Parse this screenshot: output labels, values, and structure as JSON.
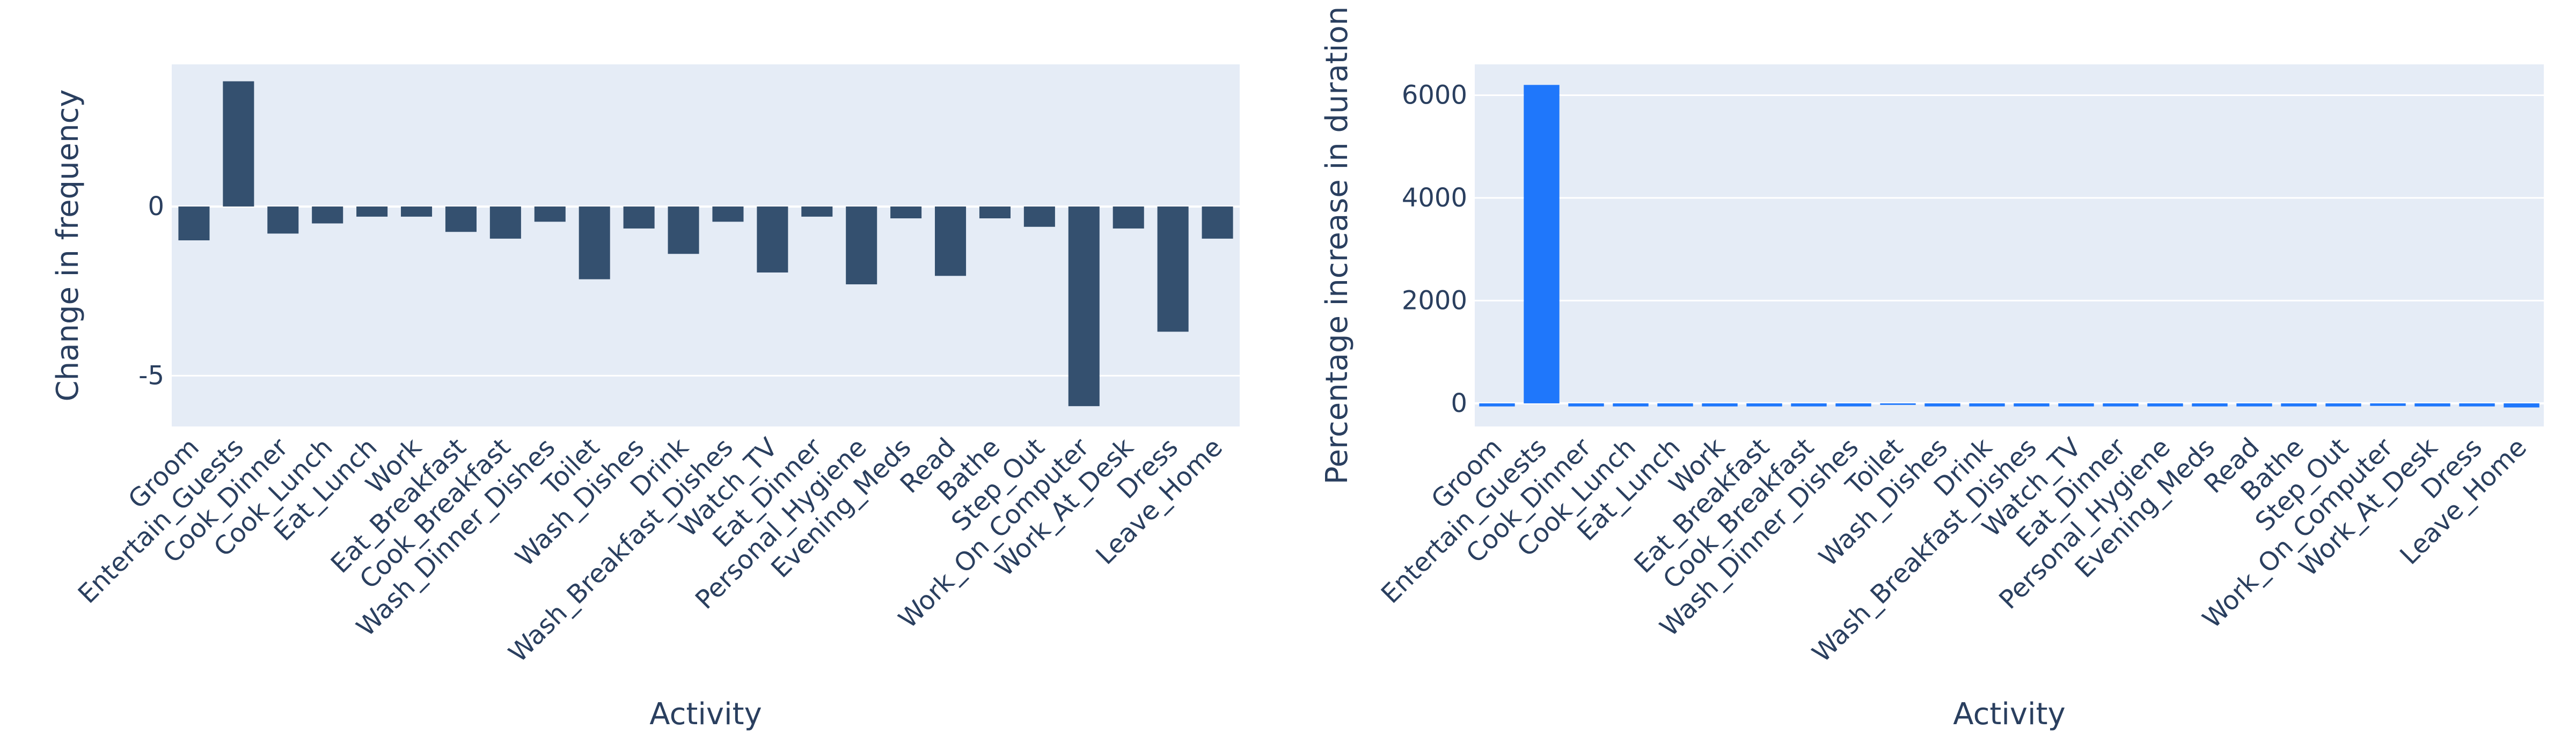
{
  "chart_data": [
    {
      "type": "bar",
      "title": "",
      "xlabel": "Activity",
      "ylabel": "Change in frequency",
      "ylim": [
        -6.5,
        4.2
      ],
      "yticks": [
        -5,
        0
      ],
      "grid": true,
      "bar_color": "#34506f",
      "plot_bg": "#e5ecf6",
      "categories": [
        "Groom",
        "Entertain_Guests",
        "Cook_Dinner",
        "Cook_Lunch",
        "Eat_Lunch",
        "Work",
        "Eat_Breakfast",
        "Cook_Breakfast",
        "Wash_Dinner_Dishes",
        "Toilet",
        "Wash_Dishes",
        "Drink",
        "Wash_Breakfast_Dishes",
        "Watch_TV",
        "Eat_Dinner",
        "Personal_Hygiene",
        "Evening_Meds",
        "Read",
        "Bathe",
        "Step_Out",
        "Work_On_Computer",
        "Work_At_Desk",
        "Dress",
        "Leave_Home"
      ],
      "values": [
        -1.0,
        3.7,
        -0.8,
        -0.5,
        -0.3,
        -0.3,
        -0.75,
        -0.95,
        -0.45,
        -2.15,
        -0.65,
        -1.4,
        -0.45,
        -1.95,
        -0.3,
        -2.3,
        -0.35,
        -2.05,
        -0.35,
        -0.6,
        -5.9,
        -0.65,
        -3.7,
        -0.95
      ]
    },
    {
      "type": "bar",
      "title": "",
      "xlabel": "Activity",
      "ylabel": "Percentage increase in duration",
      "ylim": [
        -450,
        6600
      ],
      "yticks": [
        0,
        2000,
        4000,
        6000
      ],
      "grid": true,
      "bar_color": "#1f77fb",
      "plot_bg": "#e5ecf6",
      "categories": [
        "Groom",
        "Entertain_Guests",
        "Cook_Dinner",
        "Cook_Lunch",
        "Eat_Lunch",
        "Work",
        "Eat_Breakfast",
        "Cook_Breakfast",
        "Wash_Dinner_Dishes",
        "Toilet",
        "Wash_Dishes",
        "Drink",
        "Wash_Breakfast_Dishes",
        "Watch_TV",
        "Eat_Dinner",
        "Personal_Hygiene",
        "Evening_Meds",
        "Read",
        "Bathe",
        "Step_Out",
        "Work_On_Computer",
        "Work_At_Desk",
        "Dress",
        "Leave_Home"
      ],
      "values": [
        -60,
        6200,
        -60,
        -60,
        -60,
        -60,
        -60,
        -60,
        -60,
        -30,
        -60,
        -60,
        -60,
        -60,
        -60,
        -60,
        -60,
        -60,
        -60,
        -60,
        -50,
        -60,
        -60,
        -80
      ]
    }
  ]
}
